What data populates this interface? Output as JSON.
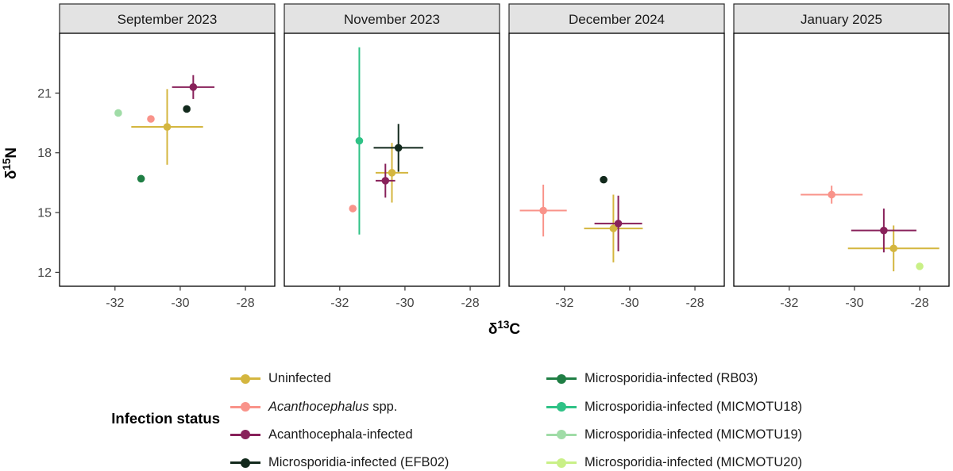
{
  "figure": {
    "background": "#FFFFFF",
    "panel_border_color": "#000000",
    "strip_bg": "#E3E3E3",
    "strip_border_color": "#2B2B2B",
    "strip_text_color": "#1A1A1A",
    "tick_label_color": "#444444",
    "axis_title_color": "#000000"
  },
  "chart_data": {
    "type": "scatter",
    "facets": [
      "September 2023",
      "November 2023",
      "December 2024",
      "January 2025"
    ],
    "xlabel": {
      "prefix": "δ",
      "sup": "13",
      "suffix": "C"
    },
    "ylabel": {
      "prefix": "δ",
      "sup": "15",
      "suffix": "N"
    },
    "xlim": [
      -33.7,
      -27.1
    ],
    "ylim": [
      11.3,
      24.0
    ],
    "xticks": [
      -32,
      -30,
      -28
    ],
    "yticks": [
      21,
      18,
      15,
      12
    ],
    "grid": false,
    "legend_title": "Infection status",
    "legend_position": "bottom, two columns",
    "error_bars": "mean ± sd, no caps",
    "series": [
      {
        "slug": "uninfected",
        "label_parts": [
          {
            "text": "Uninfected",
            "italic": false
          }
        ],
        "color": "#D4B63F",
        "points": [
          {
            "facet": 0,
            "x": -30.4,
            "y": 19.3,
            "xerr": 1.1,
            "yerr": 1.9
          },
          {
            "facet": 1,
            "x": -30.4,
            "y": 17.0,
            "xerr": 0.5,
            "yerr": 1.5
          },
          {
            "facet": 2,
            "x": -30.5,
            "y": 14.2,
            "xerr": 0.9,
            "yerr": 1.7
          },
          {
            "facet": 3,
            "x": -28.8,
            "y": 13.2,
            "xerr": 1.4,
            "yerr": 1.15
          }
        ]
      },
      {
        "slug": "acanthocephalus-spp",
        "label_parts": [
          {
            "text": "Acanthocephalus",
            "italic": true
          },
          {
            "text": " spp.",
            "italic": false
          }
        ],
        "color": "#F9938A",
        "points": [
          {
            "facet": 0,
            "x": -30.9,
            "y": 19.7
          },
          {
            "facet": 1,
            "x": -31.6,
            "y": 15.2
          },
          {
            "facet": 2,
            "x": -32.65,
            "y": 15.1,
            "xerr": 0.72,
            "yerr": 1.3
          },
          {
            "facet": 3,
            "x": -30.7,
            "y": 15.9,
            "xerr": 0.95,
            "yerr": 0.45
          }
        ]
      },
      {
        "slug": "acanthocephala-infected",
        "label_parts": [
          {
            "text": "Acanthocephala-infected",
            "italic": false
          }
        ],
        "color": "#88215A",
        "points": [
          {
            "facet": 0,
            "x": -29.6,
            "y": 21.3,
            "xerr": 0.65,
            "yerr": 0.6
          },
          {
            "facet": 1,
            "x": -30.6,
            "y": 16.6,
            "xerr": 0.3,
            "yerr": 0.85
          },
          {
            "facet": 2,
            "x": -30.35,
            "y": 14.45,
            "xerr": 0.73,
            "yerr": 1.4
          },
          {
            "facet": 3,
            "x": -29.1,
            "y": 14.1,
            "xerr": 1.0,
            "yerr": 1.1
          }
        ]
      },
      {
        "slug": "microsporidia-infected-efb02",
        "label_parts": [
          {
            "text": "Microsporidia-infected (EFB02)",
            "italic": false
          }
        ],
        "color": "#12291C",
        "points": [
          {
            "facet": 0,
            "x": -29.8,
            "y": 20.2
          },
          {
            "facet": 1,
            "x": -30.2,
            "y": 18.25,
            "xerr": 0.76,
            "yerr": 1.2
          },
          {
            "facet": 2,
            "x": -30.8,
            "y": 16.65
          }
        ]
      },
      {
        "slug": "microsporidia-infected-rb03",
        "label_parts": [
          {
            "text": "Microsporidia-infected (RB03)",
            "italic": false
          }
        ],
        "color": "#1F7E44",
        "points": [
          {
            "facet": 0,
            "x": -31.2,
            "y": 16.7
          }
        ]
      },
      {
        "slug": "microsporidia-infected-micmotu18",
        "label_parts": [
          {
            "text": "Microsporidia-infected (MICMOTU18)",
            "italic": false
          }
        ],
        "color": "#2FC286",
        "points": [
          {
            "facet": 1,
            "x": -31.4,
            "y": 18.6,
            "yerr": 4.7
          }
        ]
      },
      {
        "slug": "microsporidia-infected-micmotu19",
        "label_parts": [
          {
            "text": "Microsporidia-infected (MICMOTU19)",
            "italic": false
          }
        ],
        "color": "#A0DCA7",
        "points": [
          {
            "facet": 0,
            "x": -31.9,
            "y": 20.0
          }
        ]
      },
      {
        "slug": "microsporidia-infected-micmotu20",
        "label_parts": [
          {
            "text": "Microsporidia-infected (MICMOTU20)",
            "italic": false
          }
        ],
        "color": "#C9F087",
        "points": [
          {
            "facet": 3,
            "x": -28.0,
            "y": 12.3
          }
        ]
      }
    ]
  }
}
